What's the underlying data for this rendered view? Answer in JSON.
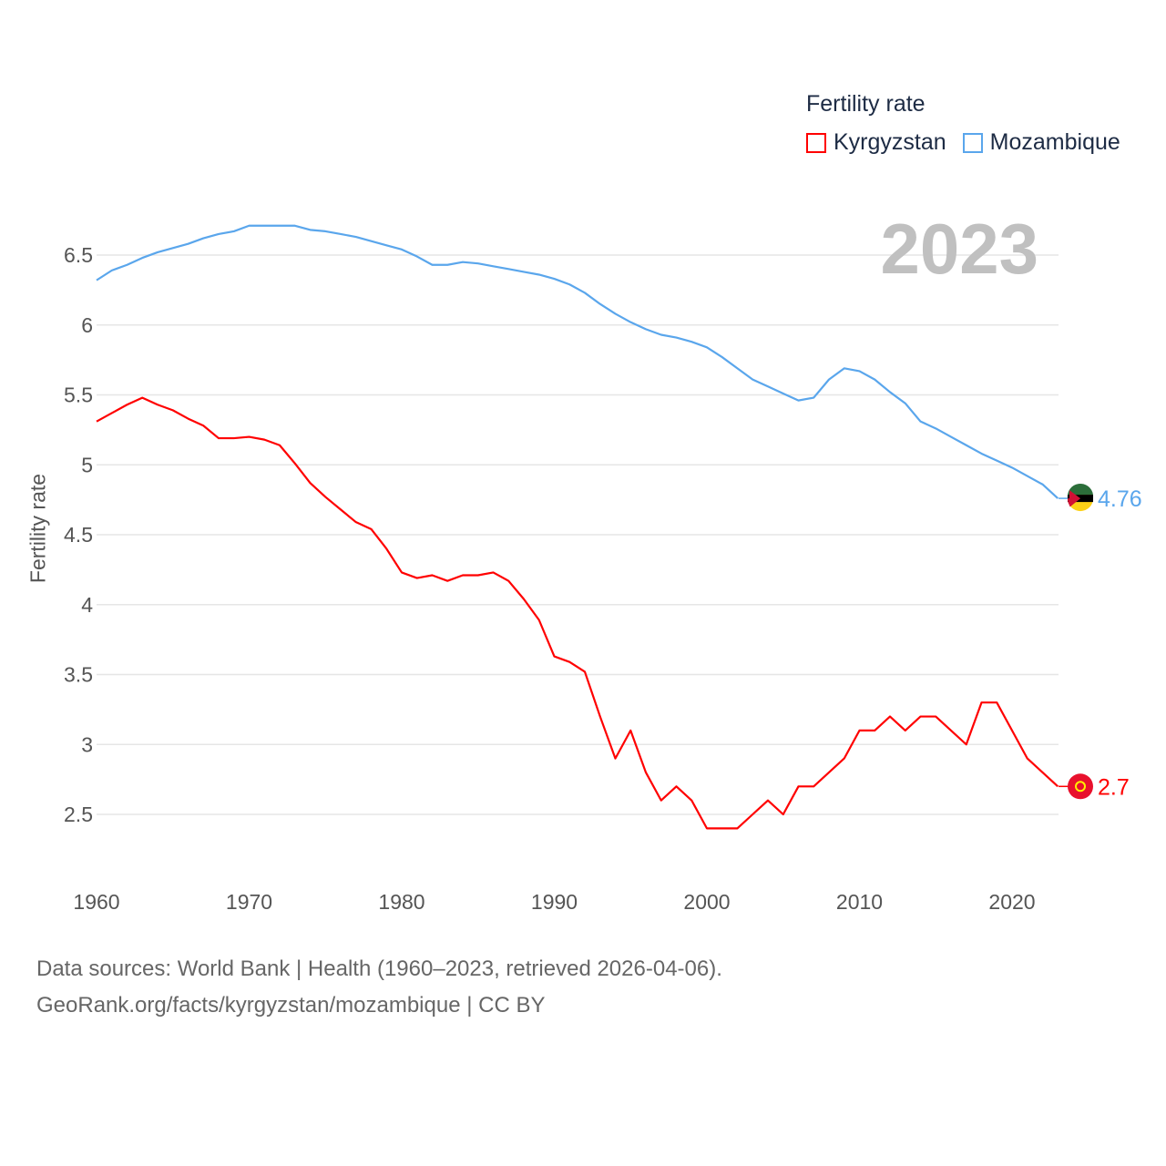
{
  "legend": {
    "title": "Fertility rate",
    "items": [
      {
        "name": "Kyrgyzstan",
        "color": "#ff0000"
      },
      {
        "name": "Mozambique",
        "color": "#5aa6ec"
      }
    ]
  },
  "current_year": "2023",
  "source": {
    "line1": "Data sources: World Bank | Health (1960–2023, retrieved 2026-04-06).",
    "line2": "GeoRank.org/facts/kyrgyzstan/mozambique | CC BY"
  },
  "chart_data": {
    "type": "line",
    "title": "Fertility rate",
    "xlabel": "",
    "ylabel": "Fertility rate",
    "xlim": [
      1960,
      2023
    ],
    "ylim": [
      2.1,
      6.9
    ],
    "grid": true,
    "legend_position": "top-right",
    "x_ticks": [
      1960,
      1970,
      1980,
      1990,
      2000,
      2010,
      2020
    ],
    "y_ticks": [
      2.5,
      3,
      3.5,
      4,
      4.5,
      5,
      5.5,
      6,
      6.5
    ],
    "x": [
      1960,
      1961,
      1962,
      1963,
      1964,
      1965,
      1966,
      1967,
      1968,
      1969,
      1970,
      1971,
      1972,
      1973,
      1974,
      1975,
      1976,
      1977,
      1978,
      1979,
      1980,
      1981,
      1982,
      1983,
      1984,
      1985,
      1986,
      1987,
      1988,
      1989,
      1990,
      1991,
      1992,
      1993,
      1994,
      1995,
      1996,
      1997,
      1998,
      1999,
      2000,
      2001,
      2002,
      2003,
      2004,
      2005,
      2006,
      2007,
      2008,
      2009,
      2010,
      2011,
      2012,
      2013,
      2014,
      2015,
      2016,
      2017,
      2018,
      2019,
      2020,
      2021,
      2022,
      2023
    ],
    "series": [
      {
        "name": "Kyrgyzstan",
        "color": "#ff0000",
        "end_label": "2.7",
        "values": [
          5.31,
          5.37,
          5.43,
          5.48,
          5.43,
          5.39,
          5.33,
          5.28,
          5.19,
          5.19,
          5.2,
          5.18,
          5.14,
          5.01,
          4.87,
          4.77,
          4.68,
          4.59,
          4.54,
          4.4,
          4.23,
          4.19,
          4.21,
          4.17,
          4.21,
          4.21,
          4.23,
          4.17,
          4.04,
          3.89,
          3.63,
          3.59,
          3.52,
          3.2,
          2.9,
          3.1,
          2.8,
          2.6,
          2.7,
          2.6,
          2.4,
          2.4,
          2.4,
          2.5,
          2.6,
          2.5,
          2.7,
          2.7,
          2.8,
          2.9,
          3.1,
          3.1,
          3.2,
          3.1,
          3.2,
          3.2,
          3.1,
          3.0,
          3.3,
          3.3,
          3.1,
          2.9,
          2.8,
          2.7
        ]
      },
      {
        "name": "Mozambique",
        "color": "#5aa6ec",
        "end_label": "4.76",
        "values": [
          6.32,
          6.39,
          6.43,
          6.48,
          6.52,
          6.55,
          6.58,
          6.62,
          6.65,
          6.67,
          6.71,
          6.71,
          6.71,
          6.71,
          6.68,
          6.67,
          6.65,
          6.63,
          6.6,
          6.57,
          6.54,
          6.49,
          6.43,
          6.43,
          6.45,
          6.44,
          6.42,
          6.4,
          6.38,
          6.36,
          6.33,
          6.29,
          6.23,
          6.15,
          6.08,
          6.02,
          5.97,
          5.93,
          5.91,
          5.88,
          5.84,
          5.77,
          5.69,
          5.61,
          5.56,
          5.51,
          5.46,
          5.48,
          5.61,
          5.69,
          5.67,
          5.61,
          5.52,
          5.44,
          5.31,
          5.26,
          5.2,
          5.14,
          5.08,
          5.03,
          4.98,
          4.92,
          4.86,
          4.76
        ]
      }
    ]
  }
}
